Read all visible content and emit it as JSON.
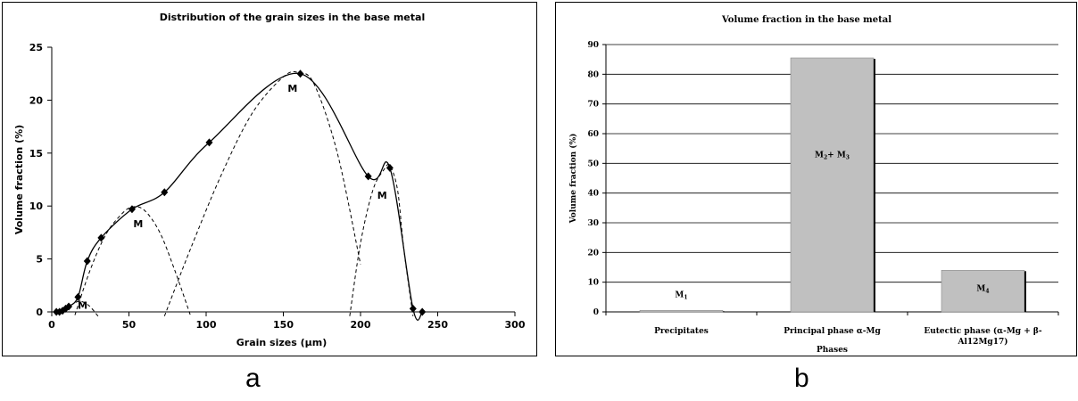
{
  "chart_data": [
    {
      "type": "line",
      "title": "Distribution of the grain sizes in the base metal",
      "xlabel": "Grain sizes (µm)",
      "ylabel": "Volume fraction (%)",
      "xlim": [
        0,
        300
      ],
      "ylim": [
        0,
        25
      ],
      "xticks": [
        "0",
        "50",
        "100",
        "150",
        "200",
        "250",
        "300"
      ],
      "yticks": [
        "0",
        "5",
        "10",
        "15",
        "20",
        "25"
      ],
      "grid": false,
      "series": [
        {
          "x": [
            3,
            5,
            7,
            9,
            11,
            17,
            23,
            32,
            52,
            73,
            102,
            161,
            205,
            219,
            234,
            240
          ],
          "y": [
            0,
            0,
            0.1,
            0.3,
            0.5,
            1.4,
            4.8,
            7.0,
            9.7,
            11.3,
            16.0,
            22.5,
            12.8,
            13.6,
            0.3,
            0
          ]
        }
      ],
      "fits": [
        {
          "x": [
            5,
            12,
            18,
            24,
            30
          ],
          "y": [
            0,
            0.6,
            1.0,
            0.6,
            -0.4
          ]
        },
        {
          "x": [
            15,
            25,
            35,
            45,
            52,
            60,
            70,
            80,
            90
          ],
          "y": [
            -0.3,
            4.0,
            7.3,
            9.2,
            9.9,
            9.6,
            7.5,
            3.8,
            -0.4
          ]
        },
        {
          "x": [
            73,
            90,
            110,
            130,
            150,
            160,
            170,
            185,
            200
          ],
          "y": [
            -0.4,
            6.0,
            13.0,
            18.8,
            22.2,
            22.6,
            21.5,
            15.0,
            4.5
          ]
        },
        {
          "x": [
            193,
            200,
            208,
            215,
            219,
            224,
            228,
            234
          ],
          "y": [
            -0.4,
            6.5,
            11.5,
            13.4,
            13.8,
            11.5,
            6.0,
            -0.4
          ]
        }
      ],
      "annotations": [
        {
          "text": "M",
          "x": 20,
          "y": 0.3
        },
        {
          "text": "M",
          "x": 56,
          "y": 8.0
        },
        {
          "text": "M",
          "x": 156,
          "y": 20.8
        },
        {
          "text": "M",
          "x": 214,
          "y": 10.7
        }
      ],
      "caption": "a"
    },
    {
      "type": "bar",
      "title": "Volume fraction in the base metal",
      "xlabel": "Phases",
      "ylabel": "Volume fraction (%)",
      "ylim": [
        0,
        90
      ],
      "yticks": [
        "0",
        "10",
        "20",
        "30",
        "40",
        "50",
        "60",
        "70",
        "80",
        "90"
      ],
      "grid": true,
      "categories": [
        [
          "Precipitates"
        ],
        [
          "Principal phase α-Mg"
        ],
        [
          "Eutectic phase (α-Mg + β-",
          "Al12Mg17)"
        ]
      ],
      "values": [
        0.5,
        85.5,
        14
      ],
      "bar_labels": [
        {
          "main": "M",
          "sub": "1",
          "sub2": "",
          "main2": ""
        },
        {
          "main": "M",
          "sub": "2",
          "main2": "+ M",
          "sub2": "3"
        },
        {
          "main": "M",
          "sub": "4",
          "sub2": "",
          "main2": ""
        }
      ],
      "bar_color": "#c0c0c0",
      "caption": "b"
    }
  ]
}
